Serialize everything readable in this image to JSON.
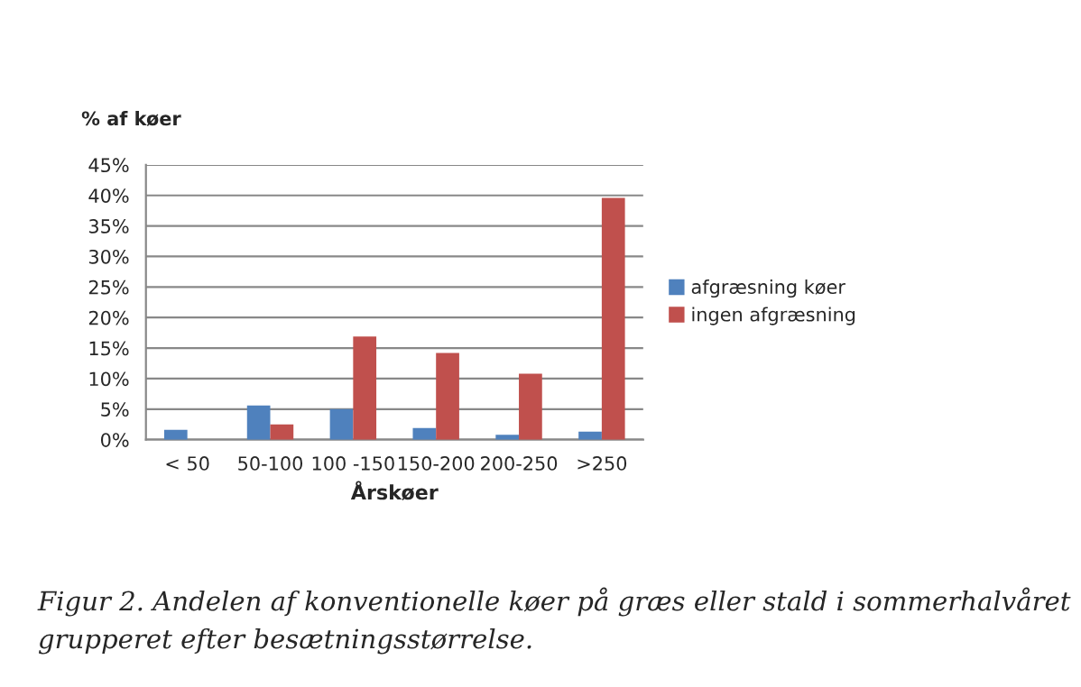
{
  "chart_data": {
    "type": "bar",
    "ylabel": "% af køer",
    "xlabel": "Årskøer",
    "categories": [
      "< 50",
      "50-100",
      "100 -150",
      "150-200",
      "200-250",
      ">250"
    ],
    "series": [
      {
        "name": "afgræsning køer",
        "color": "#4f81bd",
        "values": [
          1.6,
          5.6,
          5.0,
          1.9,
          0.8,
          1.3
        ]
      },
      {
        "name": "ingen afgræsning",
        "color": "#c0504d",
        "values": [
          0,
          2.5,
          16.9,
          14.2,
          10.8,
          39.6
        ]
      }
    ],
    "ylim": [
      0,
      45
    ],
    "yticks": [
      {
        "value": 0,
        "label": "0%"
      },
      {
        "value": 5,
        "label": "5%"
      },
      {
        "value": 10,
        "label": "10%"
      },
      {
        "value": 15,
        "label": "15%"
      },
      {
        "value": 20,
        "label": "20%"
      },
      {
        "value": 25,
        "label": "25%"
      },
      {
        "value": 30,
        "label": "30%"
      },
      {
        "value": 35,
        "label": "35%"
      },
      {
        "value": 40,
        "label": "40%"
      },
      {
        "value": 45,
        "label": "45%"
      }
    ],
    "grid": "y",
    "legend": "right",
    "annotations": [
      "Figur 2. Andelen af konventionelle køer på græs eller stald i sommerhalvåret grupperet efter besætningsstørrelse."
    ]
  }
}
